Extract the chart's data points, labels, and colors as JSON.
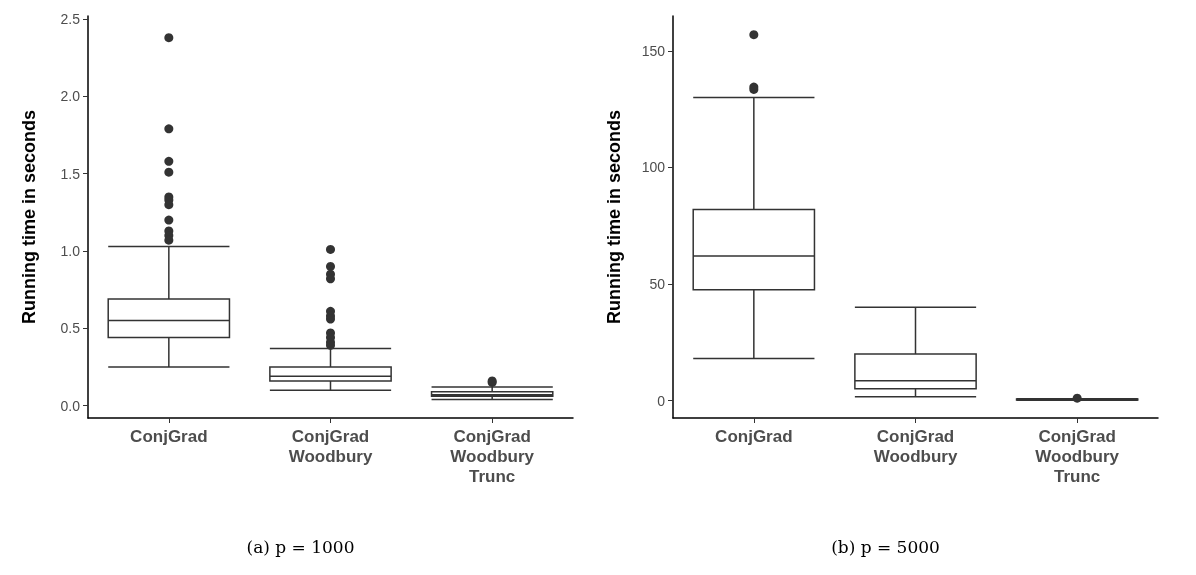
{
  "chart_data": [
    {
      "type": "box",
      "title": "(a) p = 1000",
      "ylabel": "Running time in seconds",
      "categories": [
        "ConjGrad",
        "ConjGrad\nWoodbury",
        "ConjGrad\nWoodbury\nTrunc"
      ],
      "color": "#333333",
      "ylim": [
        -0.08,
        2.52
      ],
      "yticks": [
        {
          "value": 0,
          "label": "0.0"
        },
        {
          "value": 0.5,
          "label": "0.5"
        },
        {
          "value": 1,
          "label": "1.0"
        },
        {
          "value": 1.5,
          "label": "1.5"
        },
        {
          "value": 2,
          "label": "2.0"
        },
        {
          "value": 2.5,
          "label": "2.5"
        }
      ],
      "boxes": [
        {
          "low": 0.25,
          "q1": 0.44,
          "median": 0.55,
          "q3": 0.69,
          "high": 1.03,
          "outliers": [
            2.38,
            1.79,
            1.58,
            1.51,
            1.35,
            1.33,
            1.3,
            1.2,
            1.13,
            1.1,
            1.07
          ]
        },
        {
          "low": 0.1,
          "q1": 0.16,
          "median": 0.19,
          "q3": 0.25,
          "high": 0.37,
          "outliers": [
            1.01,
            0.9,
            0.85,
            0.82,
            0.61,
            0.58,
            0.56,
            0.47,
            0.44,
            0.41,
            0.39
          ]
        },
        {
          "low": 0.04,
          "q1": 0.06,
          "median": 0.07,
          "q3": 0.09,
          "high": 0.12,
          "outliers": [
            0.15,
            0.16
          ]
        }
      ]
    },
    {
      "type": "box",
      "title": "(b) p = 5000",
      "ylabel": "Running time in seconds",
      "categories": [
        "ConjGrad",
        "ConjGrad\nWoodbury",
        "ConjGrad\nWoodbury\nTrunc"
      ],
      "color": "#333333",
      "ylim": [
        -7.5,
        165
      ],
      "yticks": [
        0,
        50,
        100,
        150
      ],
      "boxes": [
        {
          "low": 18,
          "q1": 47.5,
          "median": 62,
          "q3": 82,
          "high": 130,
          "outliers": [
            157,
            134.5,
            133.5
          ]
        },
        {
          "low": 1.6,
          "q1": 5,
          "median": 8.5,
          "q3": 20,
          "high": 40
        },
        {
          "low": 0.1,
          "q1": 0.2,
          "median": 0.4,
          "q3": 0.6,
          "high": 0.8,
          "outliers": [
            1
          ]
        }
      ]
    }
  ]
}
